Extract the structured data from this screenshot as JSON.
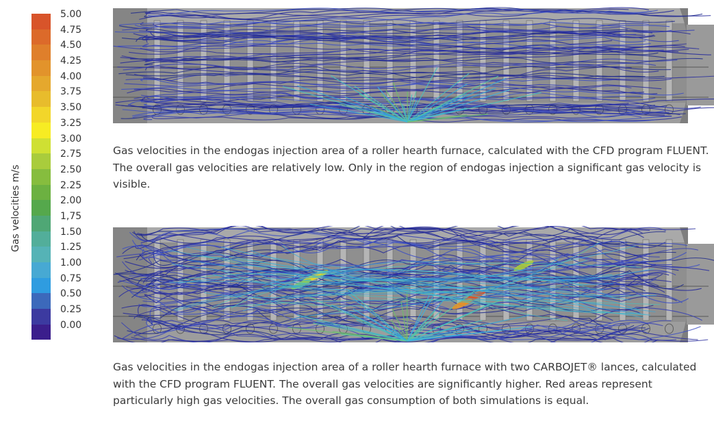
{
  "legend": {
    "title": "Gas velocities m/s",
    "ticks": [
      "5.00",
      "4.75",
      "4.50",
      "4.25",
      "4.00",
      "3.75",
      "3.50",
      "3.25",
      "3.00",
      "2.75",
      "2.50",
      "2.25",
      "2.00",
      "1,75",
      "1.50",
      "1.25",
      "1.00",
      "0.75",
      "0.50",
      "0.25",
      "0.00"
    ],
    "colors": [
      "#d8542a",
      "#dc6a2a",
      "#df7f2b",
      "#e2932b",
      "#e5a82d",
      "#e8bc2c",
      "#f2d62a",
      "#f7ec23",
      "#cfe033",
      "#a9cc3c",
      "#86bd3e",
      "#6cb141",
      "#55a84c",
      "#4fa775",
      "#52ae9a",
      "#55b3b6",
      "#47a9d3",
      "#2f9ce0",
      "#3c69bb",
      "#3c3aa0",
      "#3b1e8c"
    ]
  },
  "simulations": [
    {
      "caption": "Gas velocities in the endogas injection area of a roller hearth furnace, calculated with the CFD program FLUENT. The overall gas velocities are relatively low. Only in the region of endogas injection a significant gas velocity is visible."
    },
    {
      "caption": "Gas velocities in the endogas injection area of a roller hearth furnace with two CARBOJET® lances, calculated with the CFD program FLUENT. The overall gas velocities are significantly higher. Red areas represent particularly high gas velocities. The overall gas consumption of both simulations is equal."
    }
  ]
}
